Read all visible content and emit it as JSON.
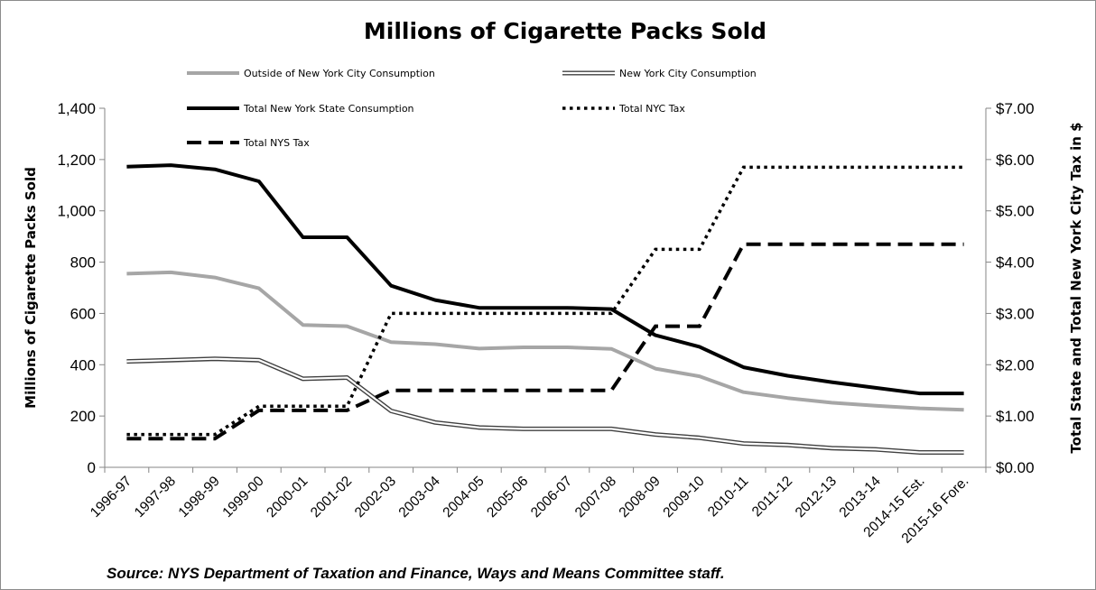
{
  "chart_data": {
    "type": "line",
    "title": "Millions of Cigarette Packs Sold",
    "ylabel": "Millions  of Cigarette Packs Sold",
    "y2label": "Total State and Total New York City Tax in $",
    "source": "Source: NYS Department of Taxation and Finance, Ways and Means Committee staff.",
    "ylim": [
      0,
      1400
    ],
    "y2lim": [
      0,
      7
    ],
    "yticks": [
      "0",
      "200",
      "400",
      "600",
      "800",
      "1,000",
      "1,200",
      "1,400"
    ],
    "y2ticks": [
      "$0.00",
      "$1.00",
      "$2.00",
      "$3.00",
      "$4.00",
      "$5.00",
      "$6.00",
      "$7.00"
    ],
    "x": [
      "1996-97",
      "1997-98",
      "1998-99",
      "1999-00",
      "2000-01",
      "2001-02",
      "2002-03",
      "2003-04",
      "2004-05",
      "2005-06",
      "2006-07",
      "2007-08",
      "2008-09",
      "2009-10",
      "2010-11",
      "2011-12",
      "2012-13",
      "2013-14",
      "2014-15 Est.",
      "2015-16 Fore."
    ],
    "legend_position": "top",
    "grid": false,
    "series": [
      {
        "name": "Outside of New York City Consumption",
        "axis": "left",
        "style": "gray",
        "color": "#a6a6a6",
        "values": [
          755,
          760,
          740,
          698,
          555,
          550,
          488,
          480,
          463,
          468,
          468,
          462,
          385,
          355,
          293,
          270,
          252,
          240,
          230,
          224
        ]
      },
      {
        "name": "New York City Consumption",
        "axis": "left",
        "style": "double",
        "color": "#404040",
        "values": [
          413,
          418,
          423,
          418,
          345,
          350,
          220,
          175,
          155,
          150,
          150,
          150,
          128,
          115,
          93,
          87,
          75,
          70,
          58,
          58
        ]
      },
      {
        "name": "Total New York State Consumption",
        "axis": "left",
        "style": "solid",
        "color": "#000000",
        "values": [
          1172,
          1178,
          1162,
          1115,
          897,
          897,
          708,
          652,
          622,
          622,
          622,
          617,
          515,
          470,
          390,
          357,
          332,
          310,
          288,
          288
        ]
      },
      {
        "name": "Total NYC Tax",
        "axis": "right",
        "style": "dotted",
        "color": "#000000",
        "values": [
          0.64,
          0.64,
          0.64,
          1.19,
          1.19,
          1.19,
          3.0,
          3.0,
          3.0,
          3.0,
          3.0,
          3.0,
          4.25,
          4.25,
          5.85,
          5.85,
          5.85,
          5.85,
          5.85,
          5.85
        ]
      },
      {
        "name": "Total NYS Tax",
        "axis": "right",
        "style": "dashed",
        "color": "#000000",
        "values": [
          0.56,
          0.56,
          0.56,
          1.11,
          1.11,
          1.11,
          1.5,
          1.5,
          1.5,
          1.5,
          1.5,
          1.5,
          2.75,
          2.75,
          4.35,
          4.35,
          4.35,
          4.35,
          4.35,
          4.35
        ]
      }
    ]
  }
}
